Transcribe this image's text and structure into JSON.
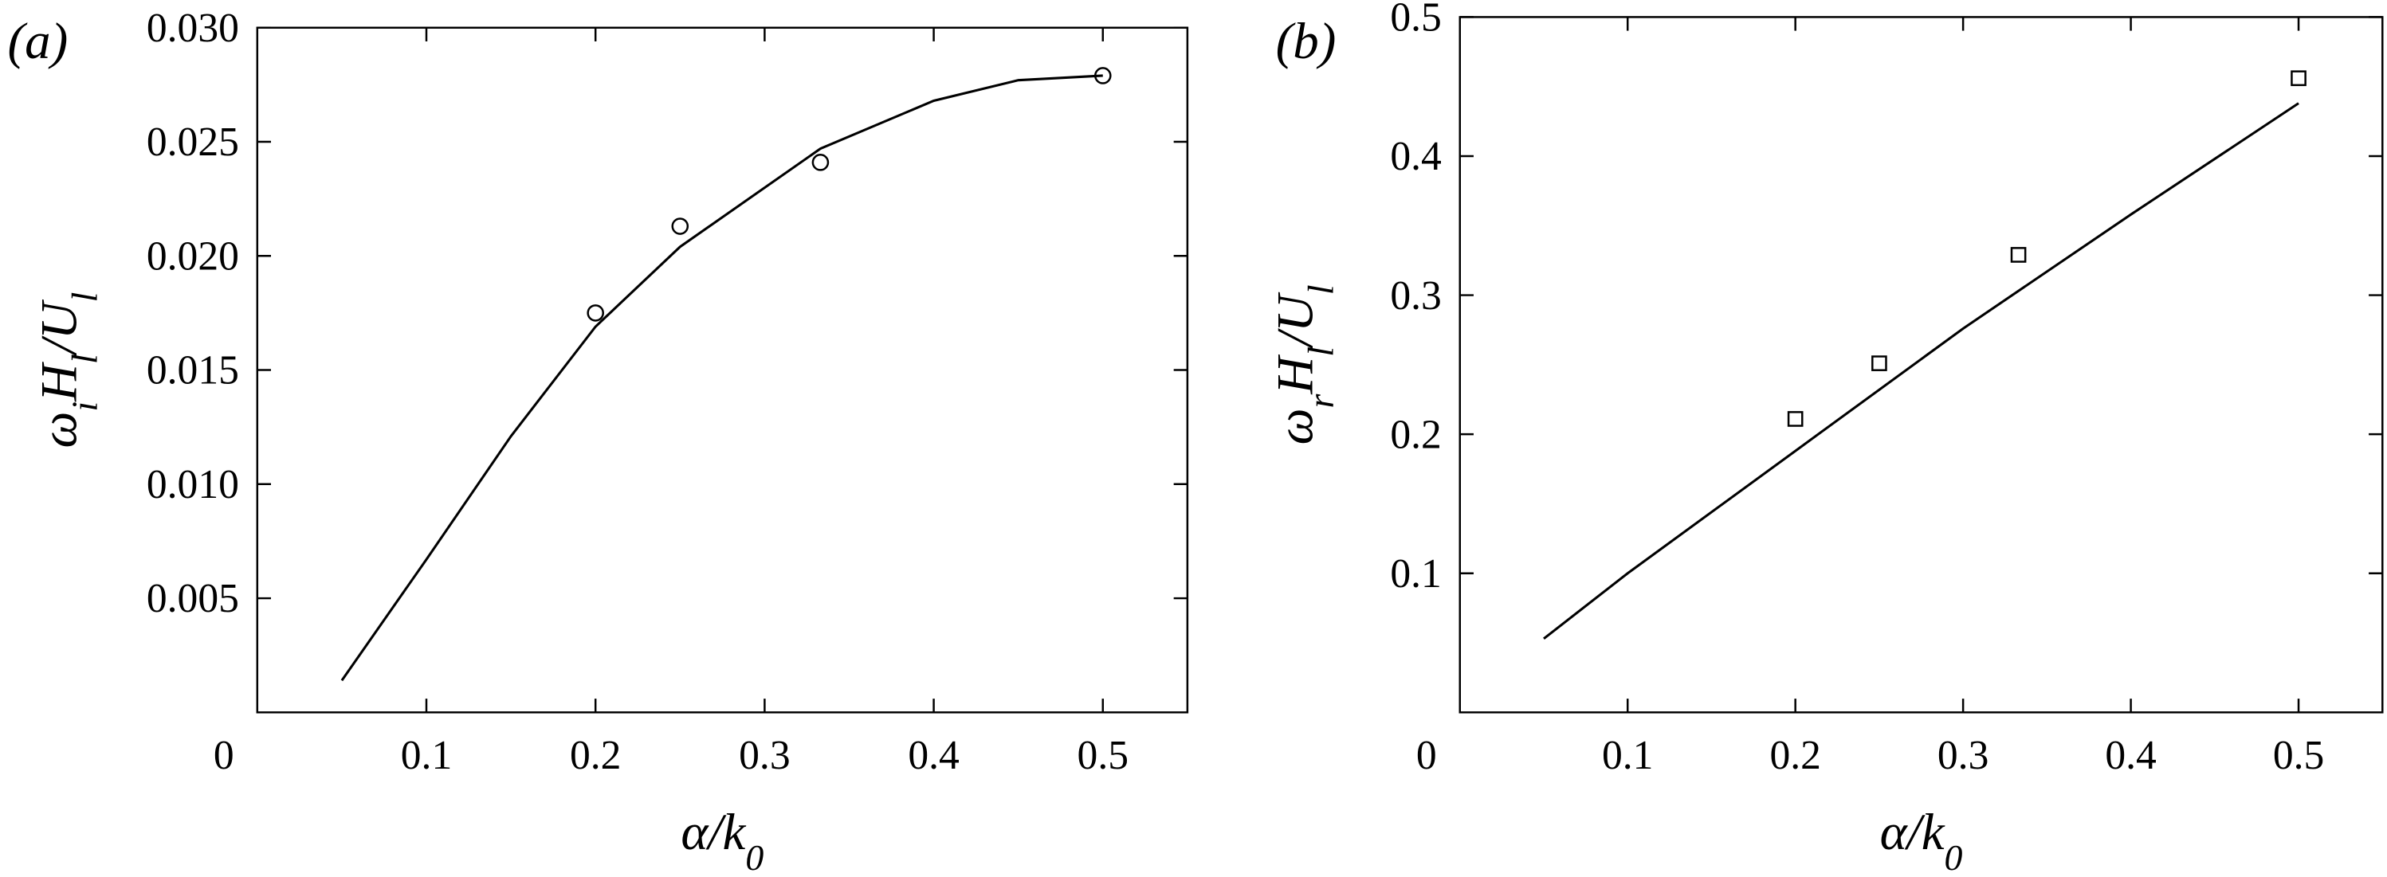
{
  "chart_data": [
    {
      "type": "line",
      "panel_label": "(a)",
      "ylabel": [
        {
          "text": "ω"
        },
        {
          "text": "i",
          "sub": true
        },
        {
          "text": "H"
        },
        {
          "text": "l",
          "sub": true
        },
        {
          "text": "/"
        },
        {
          "text": "U"
        },
        {
          "text": "l",
          "sub": true
        }
      ],
      "xlabel": [
        {
          "text": "α/k"
        },
        {
          "text": "0",
          "sub": true
        }
      ],
      "xlim": [
        0,
        0.55
      ],
      "ylim": [
        0,
        0.03
      ],
      "xticks": [
        0,
        0.1,
        0.2,
        0.3,
        0.4,
        0.5
      ],
      "yticks": [
        0.005,
        {
          "value": 0.01,
          "label": "0.010"
        },
        0.015,
        {
          "value": 0.02,
          "label": "0.020"
        },
        0.025,
        {
          "value": 0.03,
          "label": "0.030"
        }
      ],
      "series": [
        {
          "style": "line",
          "color": "#000000",
          "x": [
            0.05,
            0.1,
            0.15,
            0.2,
            0.25,
            0.333,
            0.4,
            0.45,
            0.5
          ],
          "values": [
            0.0014,
            0.0067,
            0.0121,
            0.0169,
            0.0204,
            0.0247,
            0.0268,
            0.0277,
            0.0279
          ]
        },
        {
          "style": "markers",
          "marker": "circle",
          "color": "#000000",
          "x": [
            0.2,
            0.25,
            0.333,
            0.5
          ],
          "values": [
            0.0175,
            0.0213,
            0.0241,
            0.0279
          ]
        }
      ]
    },
    {
      "type": "line",
      "panel_label": "(b)",
      "ylabel": [
        {
          "text": "ω"
        },
        {
          "text": "r",
          "sub": true
        },
        {
          "text": "H"
        },
        {
          "text": "l",
          "sub": true
        },
        {
          "text": "/"
        },
        {
          "text": "U"
        },
        {
          "text": "l",
          "sub": true
        }
      ],
      "xlabel": [
        {
          "text": "α/k"
        },
        {
          "text": "0",
          "sub": true
        }
      ],
      "xlim": [
        0,
        0.55
      ],
      "ylim": [
        0,
        0.5
      ],
      "xticks": [
        0,
        0.1,
        0.2,
        0.3,
        0.4,
        0.5
      ],
      "yticks": [
        0.1,
        0.2,
        0.3,
        0.4,
        0.5
      ],
      "series": [
        {
          "style": "line",
          "color": "#000000",
          "x": [
            0.05,
            0.1,
            0.2,
            0.3,
            0.4,
            0.5
          ],
          "values": [
            0.053,
            0.1,
            0.188,
            0.276,
            0.358,
            0.438
          ]
        },
        {
          "style": "markers",
          "marker": "square",
          "color": "#000000",
          "x": [
            0.2,
            0.25,
            0.333,
            0.5
          ],
          "values": [
            0.211,
            0.251,
            0.329,
            0.456
          ]
        }
      ]
    }
  ]
}
